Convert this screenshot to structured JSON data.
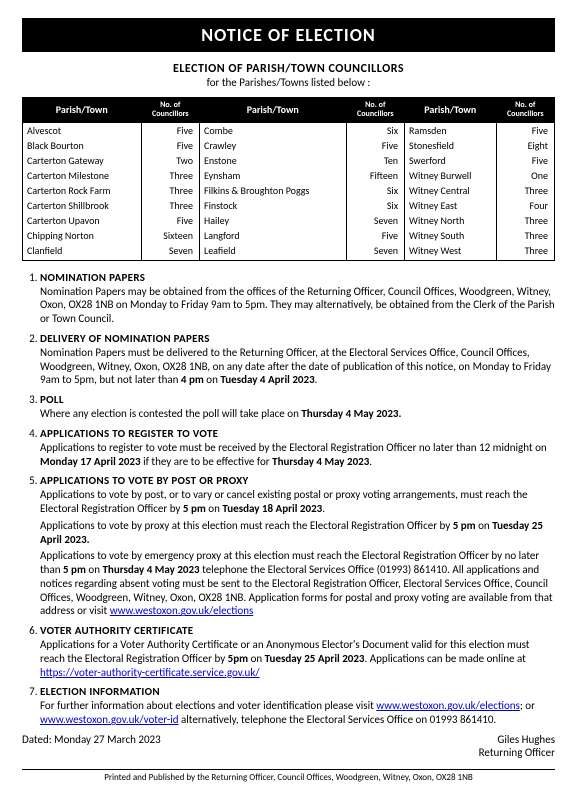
{
  "banner": "NOTICE OF ELECTION",
  "subheading": "ELECTION OF PARISH/TOWN COUNCILLORS",
  "subheading2": "for the Parishes/Towns listed below :",
  "table": {
    "headers": [
      "Parish/Town",
      "No. of Councillors",
      "Parish/Town",
      "No. of Councillors",
      "Parish/Town",
      "No. of Councillors"
    ],
    "rows": [
      [
        "Alvescot",
        "Five",
        "Combe",
        "Six",
        "Ramsden",
        "Five"
      ],
      [
        "Black Bourton",
        "Five",
        "Crawley",
        "Five",
        "Stonesfield",
        "Eight"
      ],
      [
        "Carterton Gateway",
        "Two",
        "Enstone",
        "Ten",
        "Swerford",
        "Five"
      ],
      [
        "Carterton Milestone",
        "Three",
        "Eynsham",
        "Fifteen",
        "Witney Burwell",
        "One"
      ],
      [
        "Carterton Rock Farm",
        "Three",
        "Filkins & Broughton Poggs",
        "Six",
        "Witney Central",
        "Three"
      ],
      [
        "Carterton Shillbrook",
        "Three",
        "Finstock",
        "Six",
        "Witney East",
        "Four"
      ],
      [
        "Carterton Upavon",
        "Five",
        "Hailey",
        "Seven",
        "Witney North",
        "Three"
      ],
      [
        "Chipping Norton",
        "Sixteen",
        "Langford",
        "Five",
        "Witney South",
        "Three"
      ],
      [
        "Clanfield",
        "Seven",
        "Leafield",
        "Seven",
        "Witney West",
        "Three"
      ]
    ]
  },
  "sections": [
    {
      "title": "NOMINATION PAPERS",
      "paras": [
        "Nomination Papers may be obtained from the offices of the Returning Officer, Council Offices, Woodgreen, Witney, Oxon, OX28 1NB on Monday to Friday 9am to 5pm.  They may alternatively, be obtained from the Clerk of the Parish or Town Council."
      ]
    },
    {
      "title": "DELIVERY OF NOMINATION PAPERS",
      "paras": [
        "Nomination Papers must be delivered to the Returning Officer, at the Electoral Services Office, Council Offices, Woodgreen, Witney, Oxon, OX28 1NB, on any date after the date of publication of this notice, on Monday to Friday 9am to 5pm, but not later than <b>4 pm</b> on <b>Tuesday 4 April 2023</b>."
      ]
    },
    {
      "title": "POLL",
      "paras": [
        "Where any election is contested the poll will take place on <b>Thursday 4 May 2023.</b>"
      ]
    },
    {
      "title": "APPLICATIONS TO REGISTER TO VOTE",
      "paras": [
        "Applications to register to vote must be received by the Electoral Registration Officer no later than 12 midnight on <b>Monday 17 April 2023</b> if they are to be effective for <b>Thursday 4 May 2023</b>."
      ]
    },
    {
      "title": "APPLICATIONS TO VOTE BY POST OR PROXY",
      "paras": [
        "Applications to vote by post, or to vary or cancel existing postal or proxy voting arrangements, must reach the Electoral Registration Officer by <b>5 pm</b> on <b>Tuesday 18 April 2023</b>.",
        "Applications to vote by proxy at this election must reach the Electoral Registration Officer by <b>5 pm</b> on <b>Tuesday 25 April 2023.</b>",
        "Applications to vote by emergency proxy at this election must reach the Electoral Registration Officer by no later than <b>5 pm</b> on <b>Thursday 4 May 2023</b> telephone the Electoral Services Office (01993) 861410. All applications and notices regarding absent voting must be sent to the Electoral Registration Officer, Electoral Services Office, Council Offices, Woodgreen, Witney, Oxon, OX28 1NB. Application forms for postal and proxy voting are available from that address or visit <a href='#'>www.westoxon.gov.uk/elections</a>"
      ]
    },
    {
      "title": "VOTER AUTHORITY CERTIFICATE",
      "paras": [
        "Applications for a Voter Authority Certificate or an Anonymous Elector's Document valid for this election must reach the Electoral Registration Officer by <b>5pm</b> on <b>Tuesday 25 April 2023</b>. Applications can be made online at <a href='#'>https://voter-authority-certificate.service.gov.uk/</a>"
      ]
    },
    {
      "title": "ELECTION INFORMATION",
      "paras": [
        "For further information about elections and voter identification please visit <a href='#'>www.westoxon.gov.uk/elections</a>; or <a href='#'>www.westoxon.gov.uk/voter-id</a> alternatively, telephone the Electoral Services Office on 01993 861410."
      ]
    }
  ],
  "dated": "Dated:  Monday 27 March 2023",
  "signer_name": "Giles Hughes",
  "signer_title": "Returning Officer",
  "printed": "Printed and Published by the Returning Officer, Council Offices, Woodgreen, Witney, Oxon, OX28 1NB"
}
